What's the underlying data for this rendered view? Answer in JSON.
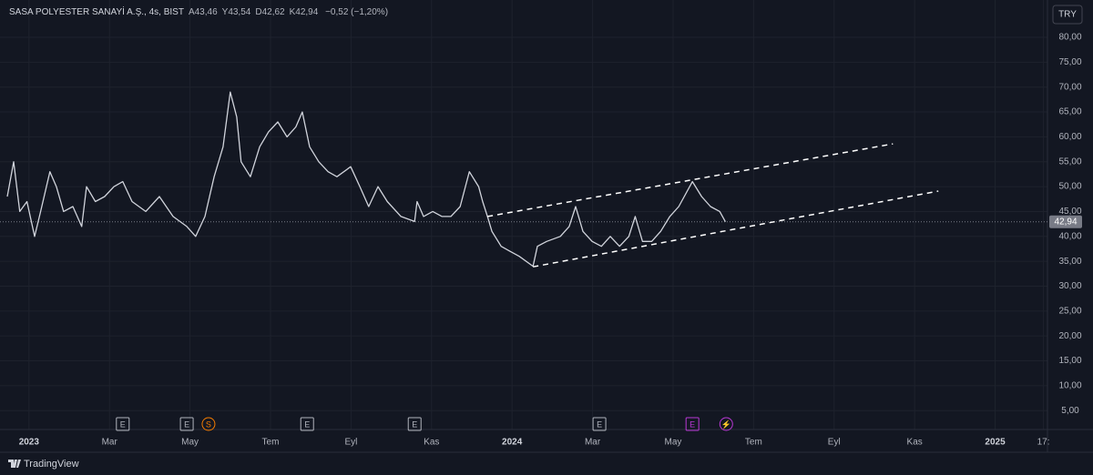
{
  "chart_data": {
    "type": "line",
    "title": "SASA POLYESTER SANAYİ A.Ş., 4s, BIST",
    "ohlc": [
      {
        "label": "A",
        "value": "43,46"
      },
      {
        "label": "Y",
        "value": "43,54"
      },
      {
        "label": "D",
        "value": "42,62"
      },
      {
        "label": "K",
        "value": "42,94"
      }
    ],
    "change": "−0,52 (−1,20%)",
    "currency": "TRY",
    "grid": true,
    "xlim": [
      -0.72,
      25.3
    ],
    "ylim": [
      1.2,
      87.5
    ],
    "xticks": [
      {
        "value": 0,
        "label": "2023"
      },
      {
        "value": 2,
        "label": "Mar"
      },
      {
        "value": 4,
        "label": "May"
      },
      {
        "value": 6,
        "label": "Tem"
      },
      {
        "value": 8,
        "label": "Eyl"
      },
      {
        "value": 10,
        "label": "Kas"
      },
      {
        "value": 12,
        "label": "2024"
      },
      {
        "value": 14,
        "label": "Mar"
      },
      {
        "value": 16,
        "label": "May"
      },
      {
        "value": 18,
        "label": "Tem"
      },
      {
        "value": 20,
        "label": "Eyl"
      },
      {
        "value": 22,
        "label": "Kas"
      },
      {
        "value": 24,
        "label": "2025"
      },
      {
        "value": 25.2,
        "label": "17:"
      }
    ],
    "yticks": [
      {
        "value": 5,
        "label": "5,00"
      },
      {
        "value": 10,
        "label": "10,00"
      },
      {
        "value": 15,
        "label": "15,00"
      },
      {
        "value": 20,
        "label": "20,00"
      },
      {
        "value": 25,
        "label": "25,00"
      },
      {
        "value": 30,
        "label": "30,00"
      },
      {
        "value": 35,
        "label": "35,00"
      },
      {
        "value": 40,
        "label": "40,00"
      },
      {
        "value": 45,
        "label": "45,00"
      },
      {
        "value": 50,
        "label": "50,00"
      },
      {
        "value": 55,
        "label": "55,00"
      },
      {
        "value": 60,
        "label": "60,00"
      },
      {
        "value": 65,
        "label": "65,00"
      },
      {
        "value": 70,
        "label": "70,00"
      },
      {
        "value": 75,
        "label": "75,00"
      },
      {
        "value": 80,
        "label": "80,00"
      }
    ],
    "last_price": {
      "value": 42.94,
      "label": "42,94"
    },
    "series": [
      {
        "name": "SASA",
        "color": "#d1d4dc",
        "x": [
          -0.54,
          -0.38,
          -0.23,
          -0.05,
          0.14,
          0.29,
          0.52,
          0.68,
          0.86,
          1.09,
          1.31,
          1.43,
          1.65,
          1.88,
          2.11,
          2.33,
          2.56,
          2.9,
          3.24,
          3.58,
          3.92,
          4.14,
          4.37,
          4.6,
          4.82,
          5.0,
          5.16,
          5.27,
          5.5,
          5.73,
          5.95,
          6.18,
          6.41,
          6.63,
          6.79,
          6.97,
          7.2,
          7.43,
          7.65,
          7.99,
          8.22,
          8.44,
          8.67,
          8.9,
          9.24,
          9.58,
          9.64,
          9.8,
          10.03,
          10.26,
          10.48,
          10.71,
          10.94,
          11.17,
          11.27,
          11.39,
          11.5,
          11.73,
          11.95,
          12.18,
          12.52,
          12.63,
          12.86,
          13.2,
          13.42,
          13.58,
          13.76,
          13.99,
          14.22,
          14.44,
          14.67,
          14.9,
          15.06,
          15.24,
          15.47,
          15.69,
          15.92,
          16.14,
          16.48,
          16.71,
          16.93,
          17.16,
          17.3
        ],
        "values": [
          48,
          55,
          45,
          47,
          40,
          45,
          53,
          50,
          45,
          46,
          42,
          50,
          47,
          48,
          50,
          51,
          47,
          45,
          48,
          44,
          42,
          40,
          44,
          52,
          58,
          69,
          64,
          55,
          52,
          58,
          61,
          63,
          60,
          62,
          65,
          58,
          55,
          53,
          52,
          54,
          50,
          46,
          50,
          47,
          44,
          43,
          47,
          44,
          45,
          44,
          44,
          46,
          53,
          50,
          47,
          44,
          41,
          38,
          37,
          36,
          34,
          38,
          39,
          40,
          42,
          46,
          41,
          39,
          38,
          40,
          38,
          40,
          44,
          39,
          39,
          41,
          44,
          46,
          51,
          48,
          46,
          45,
          42.94
        ]
      }
    ],
    "trend_lines": [
      {
        "x": [
          11.39,
          21.46
        ],
        "values": [
          44.0,
          58.6
        ]
      },
      {
        "x": [
          12.52,
          22.59
        ],
        "values": [
          33.9,
          49.1
        ]
      }
    ],
    "events": [
      {
        "x": 2.33,
        "label": "E",
        "color": "#b2b5be"
      },
      {
        "x": 3.92,
        "label": "E",
        "color": "#b2b5be"
      },
      {
        "x": 4.46,
        "label": "S",
        "color": "#f57c00"
      },
      {
        "x": 6.91,
        "label": "E",
        "color": "#b2b5be"
      },
      {
        "x": 9.58,
        "label": "E",
        "color": "#b2b5be"
      },
      {
        "x": 14.17,
        "label": "E",
        "color": "#b2b5be"
      },
      {
        "x": 16.48,
        "label": "E",
        "color": "#ba38d6"
      },
      {
        "x": 17.32,
        "label": "⚡",
        "color": "#ba38d6"
      }
    ]
  },
  "footer": {
    "brand": "TradingView"
  }
}
